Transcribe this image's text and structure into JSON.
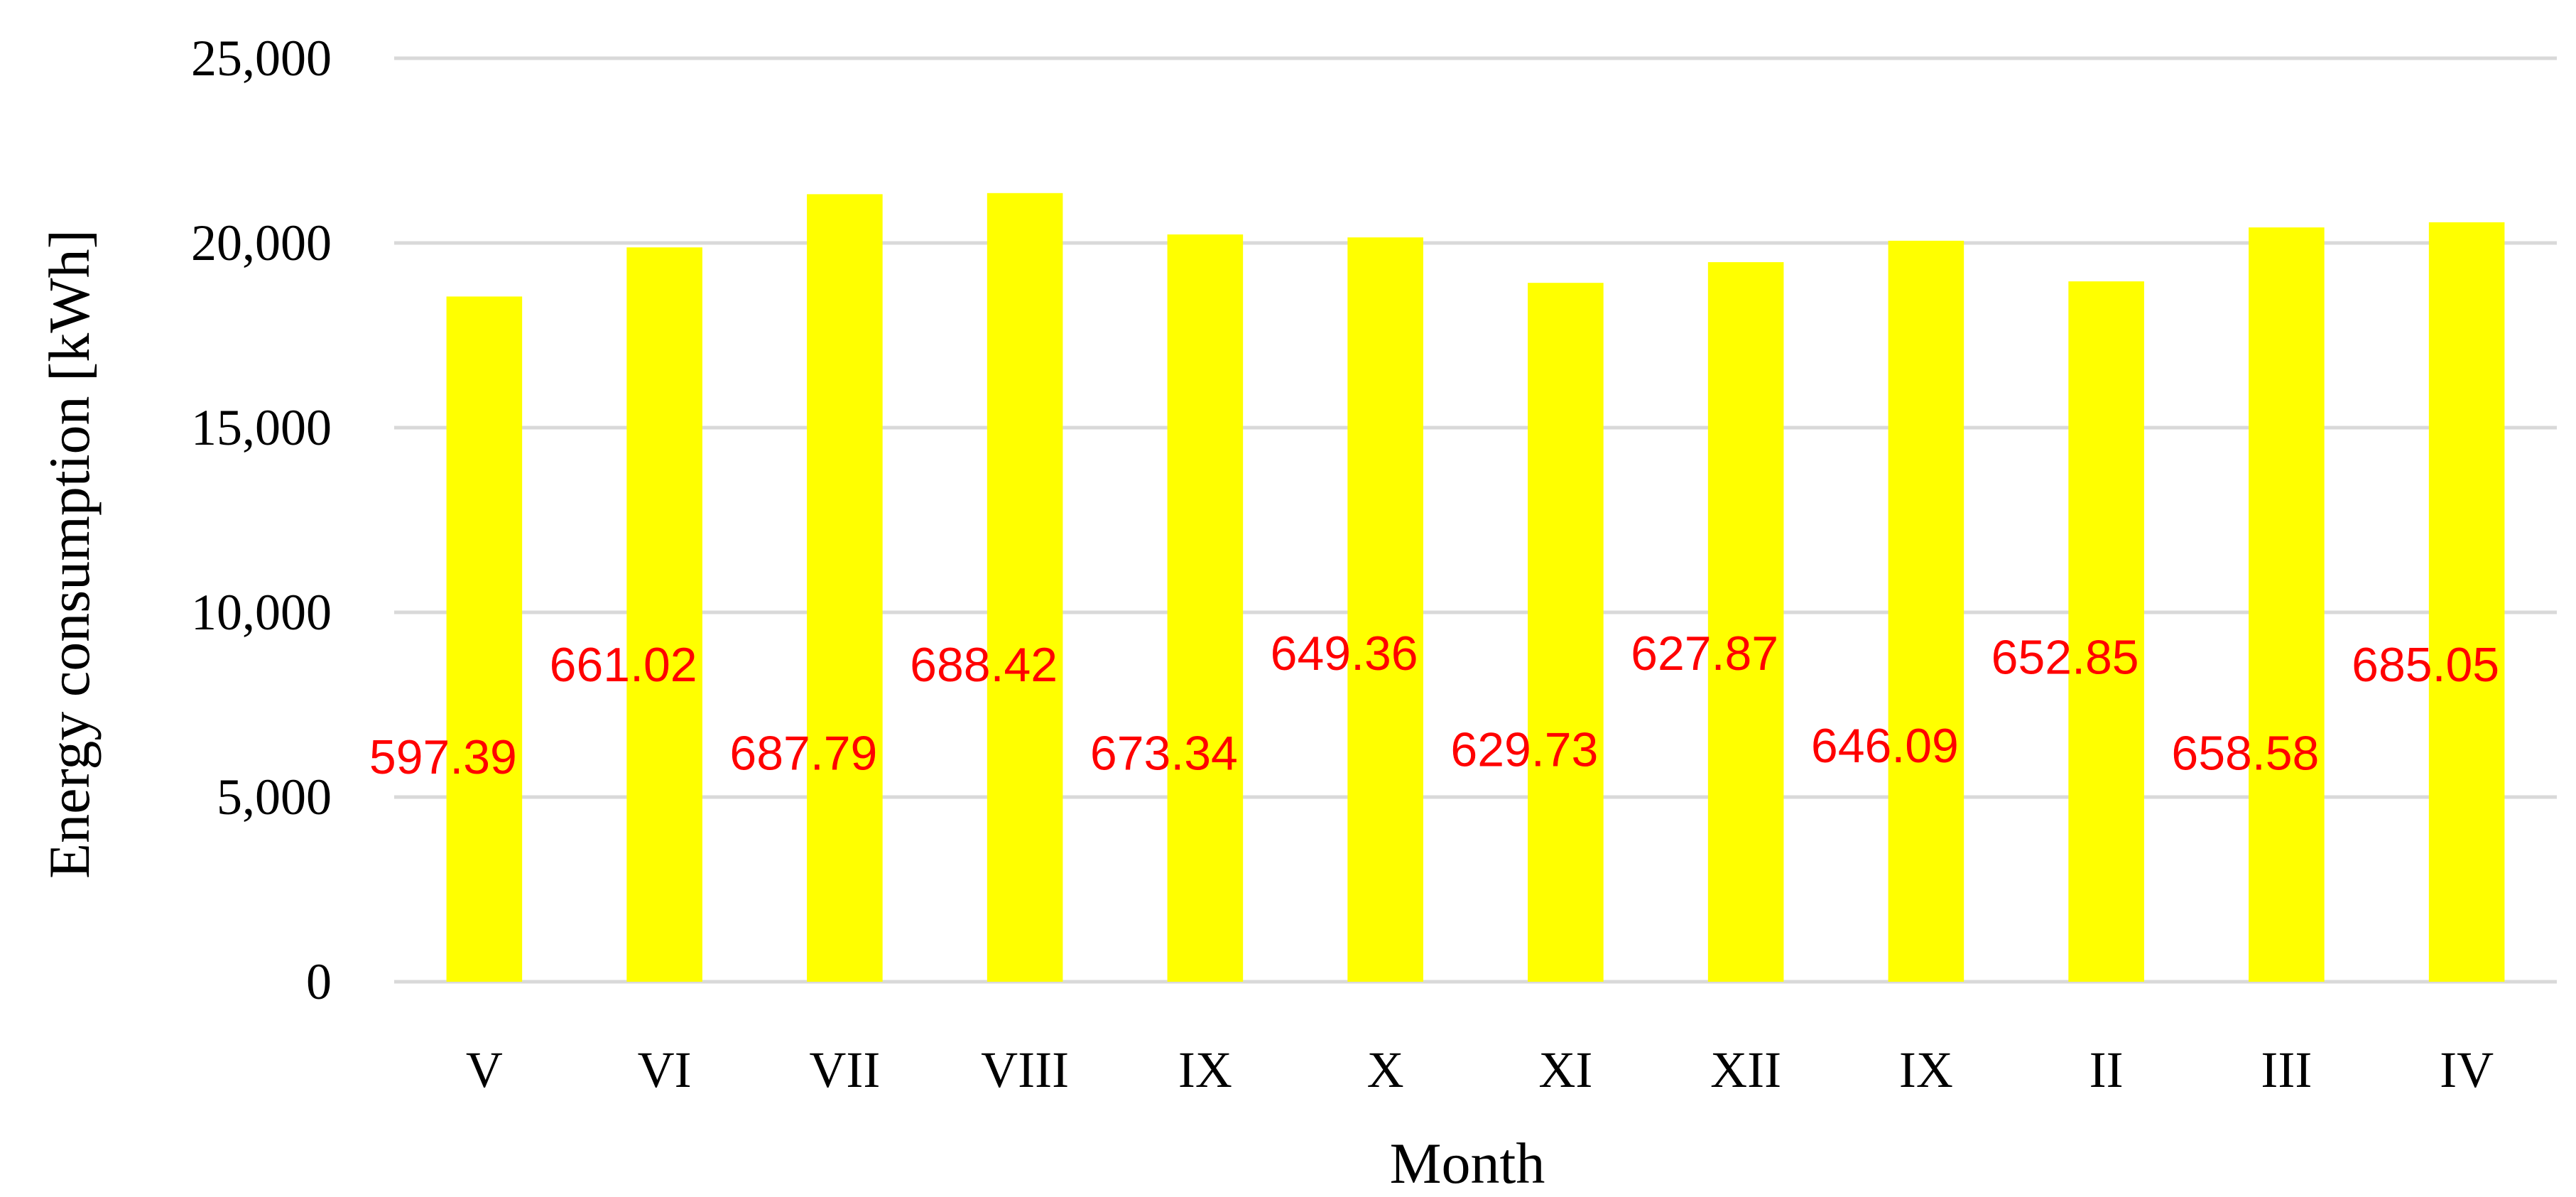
{
  "chart_data": {
    "type": "bar",
    "title": "",
    "xlabel": "Month",
    "ylabel": "Energy consumption [kWh]",
    "ylim": [
      0,
      25000
    ],
    "yticks": [
      0,
      5000,
      10000,
      15000,
      20000,
      25000
    ],
    "ytick_labels": [
      "0",
      "5,000",
      "10,000",
      "15,000",
      "20,000",
      "25,000"
    ],
    "grid": true,
    "legend": "none",
    "categories": [
      "V",
      "VI",
      "VII",
      "VIII",
      "IX",
      "X",
      "XI",
      "XII",
      "IX",
      "II",
      "III",
      "IV"
    ],
    "series": [
      {
        "values": [
          18550,
          19880,
          21320,
          21350,
          20230,
          20150,
          18920,
          19480,
          20060,
          18960,
          20420,
          20560
        ],
        "color": "#ffff00"
      }
    ],
    "data_labels": [
      "597.39",
      "661.02",
      "687.79",
      "688.42",
      "673.34",
      "649.36",
      "629.73",
      "627.87",
      "646.09",
      "652.85",
      "658.58",
      "685.05"
    ],
    "data_label_values": [
      6100,
      8600,
      6200,
      8600,
      6200,
      8900,
      6300,
      8900,
      6400,
      8800,
      6200,
      8600
    ],
    "data_label_color": "#ff0000"
  }
}
